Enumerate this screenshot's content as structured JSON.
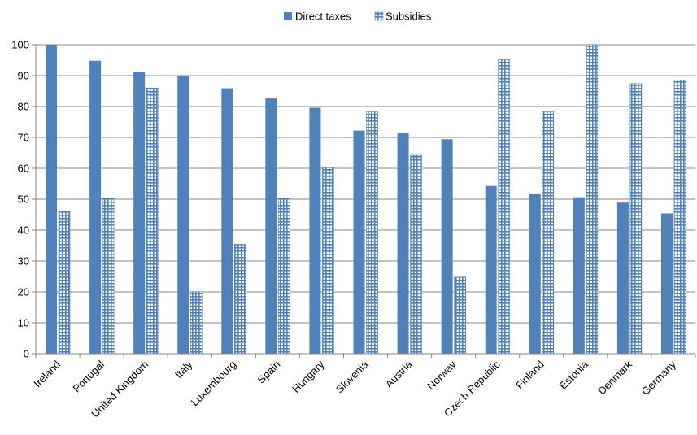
{
  "chart_data": {
    "type": "bar",
    "title": "",
    "xlabel": "",
    "ylabel": "",
    "ylim": [
      0,
      100
    ],
    "yticks": [
      0,
      10,
      20,
      30,
      40,
      50,
      60,
      70,
      80,
      90,
      100
    ],
    "grid": "horizontal",
    "legend_position": "top-center",
    "categories": [
      "Ireland",
      "Portugal",
      "United Kingdom",
      "Italy",
      "Luxembourg",
      "Spain",
      "Hungary",
      "Slovenia",
      "Austria",
      "Norway",
      "Czech Republic",
      "Finland",
      "Estonia",
      "Denmark",
      "Germany"
    ],
    "series": [
      {
        "name": "Direct taxes",
        "color": "#4f81bd",
        "pattern": "solid",
        "values": [
          100,
          94.8,
          91.3,
          90.1,
          85.9,
          82.6,
          79.6,
          72.2,
          71.4,
          69.4,
          54.3,
          51.7,
          50.6,
          48.9,
          45.4
        ]
      },
      {
        "name": "Subsidies",
        "color": "#4f81bd",
        "pattern": "grid",
        "values": [
          46,
          50.2,
          86,
          20.1,
          35.4,
          50.2,
          60.2,
          78.3,
          64.2,
          24.8,
          95.2,
          78.5,
          100,
          87.4,
          88.6
        ]
      }
    ]
  }
}
